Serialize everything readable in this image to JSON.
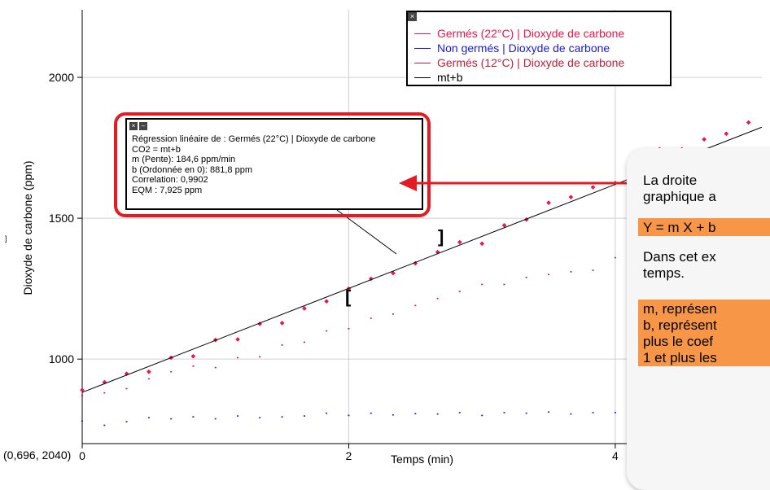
{
  "chart_data": {
    "type": "scatter",
    "xlabel": "Temps (min)",
    "ylabel": "Dioxyde de carbone (ppm)",
    "xlim": [
      0,
      5.1
    ],
    "ylim": [
      700,
      2240
    ],
    "x_ticks": [
      "0",
      "2",
      "4"
    ],
    "y_ticks": [
      "1000",
      "1500",
      "2000"
    ],
    "series": [
      {
        "name": "Germés (22°C) | Dioxyde de carbone",
        "color": "#e8164a",
        "x": [
          0,
          0.167,
          0.333,
          0.5,
          0.667,
          0.833,
          1.0,
          1.167,
          1.333,
          1.5,
          1.667,
          1.833,
          2.0,
          2.167,
          2.333,
          2.5,
          2.667,
          2.833,
          3.0,
          3.167,
          3.333,
          3.5,
          3.667,
          3.833,
          4.0,
          4.167,
          4.333,
          4.5,
          4.667,
          4.833,
          5.0
        ],
        "y": [
          890,
          918,
          948,
          955,
          1005,
          1010,
          1068,
          1070,
          1125,
          1128,
          1180,
          1205,
          1250,
          1285,
          1305,
          1340,
          1380,
          1415,
          1410,
          1475,
          1495,
          1555,
          1575,
          1610,
          1625,
          1695,
          1745,
          1745,
          1780,
          1800,
          1840
        ]
      },
      {
        "name": "Non germés | Dioxyde de carbone",
        "color": "#1a1adb",
        "x": [
          0,
          0.167,
          0.333,
          0.5,
          0.667,
          0.833,
          1.0,
          1.167,
          1.333,
          1.5,
          1.667,
          1.833,
          2.0,
          2.167,
          2.333,
          2.5,
          2.667,
          2.833,
          3.0,
          3.167,
          3.333,
          3.5,
          3.667,
          3.833,
          4.0
        ],
        "y": [
          780,
          765,
          778,
          792,
          788,
          795,
          788,
          798,
          792,
          795,
          798,
          808,
          800,
          808,
          802,
          806,
          805,
          810,
          800,
          810,
          808,
          812,
          805,
          810,
          810
        ]
      },
      {
        "name": "Germés (12°C) | Dioxyde de carbone",
        "color": "#c0203a",
        "x": [
          0,
          0.167,
          0.333,
          0.5,
          0.667,
          0.833,
          1.0,
          1.167,
          1.333,
          1.5,
          1.667,
          1.833,
          2.0,
          2.167,
          2.333,
          2.5,
          2.667,
          2.833,
          3.0,
          3.167,
          3.333,
          3.5,
          3.667,
          3.833,
          4.0
        ],
        "y": [
          870,
          880,
          895,
          930,
          955,
          975,
          970,
          1005,
          1008,
          1050,
          1060,
          1100,
          1108,
          1145,
          1160,
          1190,
          1215,
          1240,
          1265,
          1265,
          1290,
          1300,
          1310,
          1315,
          1360
        ]
      },
      {
        "name": "mt+b",
        "color": "#000000",
        "type": "line",
        "slope": 184.6,
        "intercept": 881.8,
        "x_range": [
          0,
          5.1
        ]
      }
    ]
  },
  "legend": {
    "items": [
      {
        "label": "Germés (22°C) | Dioxyde de carbone",
        "color": "#e8164a"
      },
      {
        "label": "Non germés | Dioxyde de carbone",
        "color": "#1a1adb"
      },
      {
        "label": "Germés (12°C) | Dioxyde de carbone",
        "color": "#c0203a"
      },
      {
        "label": "mt+b",
        "color": "#000000"
      }
    ],
    "close_icon": "×"
  },
  "regression_box": {
    "lines": [
      "Régression linéaire de : Germés (22°C) | Dioxyde de carbone",
      "CO2 = mt+b",
      "m (Pente): 184,6 ppm/min",
      "b (Ordonnée en 0): 881,8 ppm",
      "Correlation: 0,9902",
      "EQM : 7,925 ppm"
    ],
    "close_icon": "×",
    "minimize_icon": "–"
  },
  "callout": {
    "line1": "La droite",
    "line2": "graphique a",
    "equation": "Y = m X + b",
    "line3": "Dans cet ex",
    "line4": "temps.",
    "line5": "m, représen",
    "line6": "b, représent",
    "line7": "plus le coef",
    "line8": "1 et plus les",
    "highlight_color": "#f79646"
  },
  "annotation": {
    "range_start_bracket": "[",
    "range_end_bracket": "]"
  },
  "cursor_readout": "(0,696, 2040)",
  "arrow_color": "#e31c23"
}
